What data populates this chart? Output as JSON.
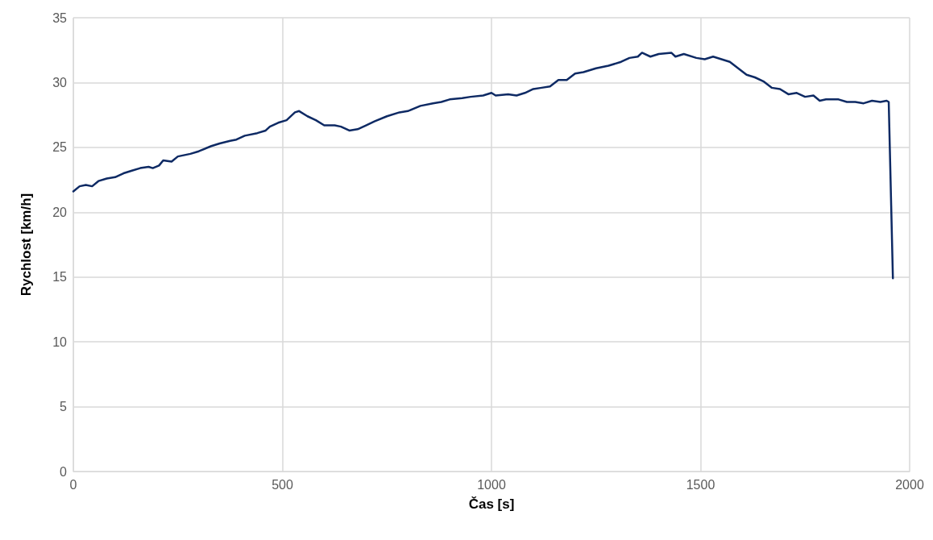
{
  "chart_data": {
    "type": "line",
    "xlabel": "Čas [s]",
    "ylabel": "Rychlost [km/h]",
    "xlim": [
      0,
      2000
    ],
    "xticks": [
      0,
      500,
      1000,
      1500,
      2000
    ],
    "ylim": [
      0,
      35
    ],
    "yticks": [
      0,
      5,
      10,
      15,
      20,
      25,
      30,
      35
    ],
    "grid": true,
    "marker": "none",
    "line_style": "solid",
    "series": [
      {
        "color": "#0e2a64",
        "x": [
          0,
          15,
          30,
          45,
          60,
          80,
          100,
          120,
          140,
          160,
          180,
          190,
          205,
          215,
          235,
          250,
          280,
          300,
          330,
          350,
          375,
          390,
          410,
          440,
          460,
          470,
          490,
          510,
          530,
          540,
          560,
          580,
          600,
          625,
          640,
          660,
          680,
          700,
          720,
          750,
          780,
          800,
          830,
          860,
          880,
          900,
          930,
          950,
          980,
          1000,
          1010,
          1040,
          1060,
          1080,
          1100,
          1120,
          1140,
          1160,
          1180,
          1200,
          1220,
          1250,
          1280,
          1310,
          1330,
          1350,
          1360,
          1380,
          1400,
          1430,
          1440,
          1460,
          1490,
          1510,
          1530,
          1550,
          1570,
          1590,
          1610,
          1630,
          1650,
          1670,
          1690,
          1710,
          1730,
          1750,
          1770,
          1785,
          1800,
          1830,
          1850,
          1870,
          1890,
          1910,
          1930,
          1945,
          1950,
          1960
        ],
        "values": [
          21.6,
          22.0,
          22.1,
          22.0,
          22.4,
          22.6,
          22.7,
          23.0,
          23.2,
          23.4,
          23.5,
          23.4,
          23.6,
          24.0,
          23.9,
          24.3,
          24.5,
          24.7,
          25.1,
          25.3,
          25.5,
          25.6,
          25.9,
          26.1,
          26.3,
          26.6,
          26.9,
          27.1,
          27.7,
          27.8,
          27.4,
          27.1,
          26.7,
          26.7,
          26.6,
          26.3,
          26.4,
          26.7,
          27.0,
          27.4,
          27.7,
          27.8,
          28.2,
          28.4,
          28.5,
          28.7,
          28.8,
          28.9,
          29.0,
          29.2,
          29.0,
          29.1,
          29.0,
          29.2,
          29.5,
          29.6,
          29.7,
          30.2,
          30.2,
          30.7,
          30.8,
          31.1,
          31.3,
          31.6,
          31.9,
          32.0,
          32.3,
          32.0,
          32.2,
          32.3,
          32.0,
          32.2,
          31.9,
          31.8,
          32.0,
          31.8,
          31.6,
          31.1,
          30.6,
          30.4,
          30.1,
          29.6,
          29.5,
          29.1,
          29.2,
          28.9,
          29.0,
          28.6,
          28.7,
          28.7,
          28.5,
          28.5,
          28.4,
          28.6,
          28.5,
          28.6,
          28.5,
          14.9
        ]
      }
    ]
  }
}
